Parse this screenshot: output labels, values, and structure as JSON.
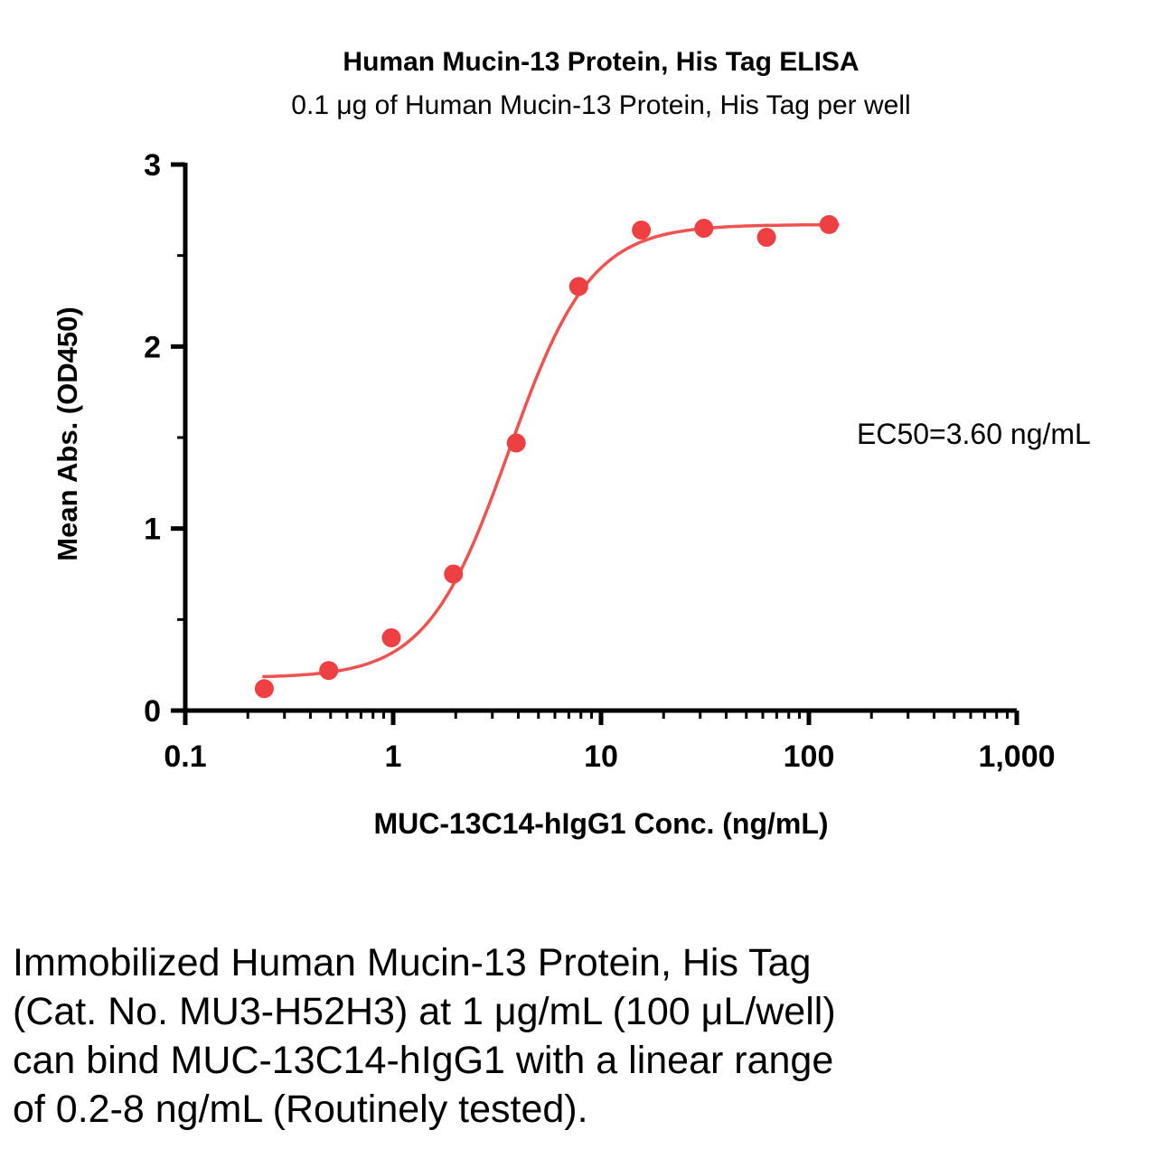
{
  "chart_data": {
    "type": "scatter",
    "title": "Human Mucin-13 Protein, His Tag ELISA",
    "subtitle": "0.1 μg of Human Mucin-13 Protein, His Tag per well",
    "xlabel": "MUC-13C14-hIgG1 Conc. (ng/mL)",
    "ylabel": "Mean Abs. (OD450)",
    "annotation": "EC50=3.60 ng/mL",
    "x_scale": "log",
    "xlim": [
      0.1,
      1000
    ],
    "ylim": [
      0,
      3
    ],
    "x_ticks": [
      0.1,
      1,
      10,
      100,
      1000
    ],
    "x_tick_labels": [
      "0.1",
      "1",
      "10",
      "100",
      "1,000"
    ],
    "y_ticks": [
      0,
      1,
      2,
      3
    ],
    "y_tick_labels": [
      "0",
      "1",
      "2",
      "3"
    ],
    "y_minor_ticks": [
      0.5,
      1.5,
      2.5
    ],
    "grid": false,
    "legend": "none",
    "series": [
      {
        "name": "MUC-13C14-hIgG1",
        "x": [
          0.24,
          0.49,
          0.98,
          1.95,
          3.91,
          7.81,
          15.63,
          31.25,
          62.5,
          125
        ],
        "y": [
          0.12,
          0.22,
          0.4,
          0.75,
          1.47,
          2.33,
          2.64,
          2.65,
          2.6,
          2.67
        ]
      }
    ],
    "fit": {
      "type": "4PL-sigmoid",
      "bottom": 0.18,
      "top": 2.67,
      "ec50": 3.6,
      "hill": 2.2,
      "curve_x_range": [
        0.235,
        140
      ]
    },
    "marker_color": "#ee4043",
    "line_color": "#ef5350",
    "axis_color": "#000000"
  },
  "caption": {
    "lines": [
      "Immobilized Human Mucin-13 Protein, His Tag",
      "(Cat. No. MU3-H52H3) at 1 μg/mL (100 μL/well)",
      "can bind MUC-13C14-hIgG1 with a linear range",
      "of 0.2-8 ng/mL (Routinely tested)."
    ]
  }
}
